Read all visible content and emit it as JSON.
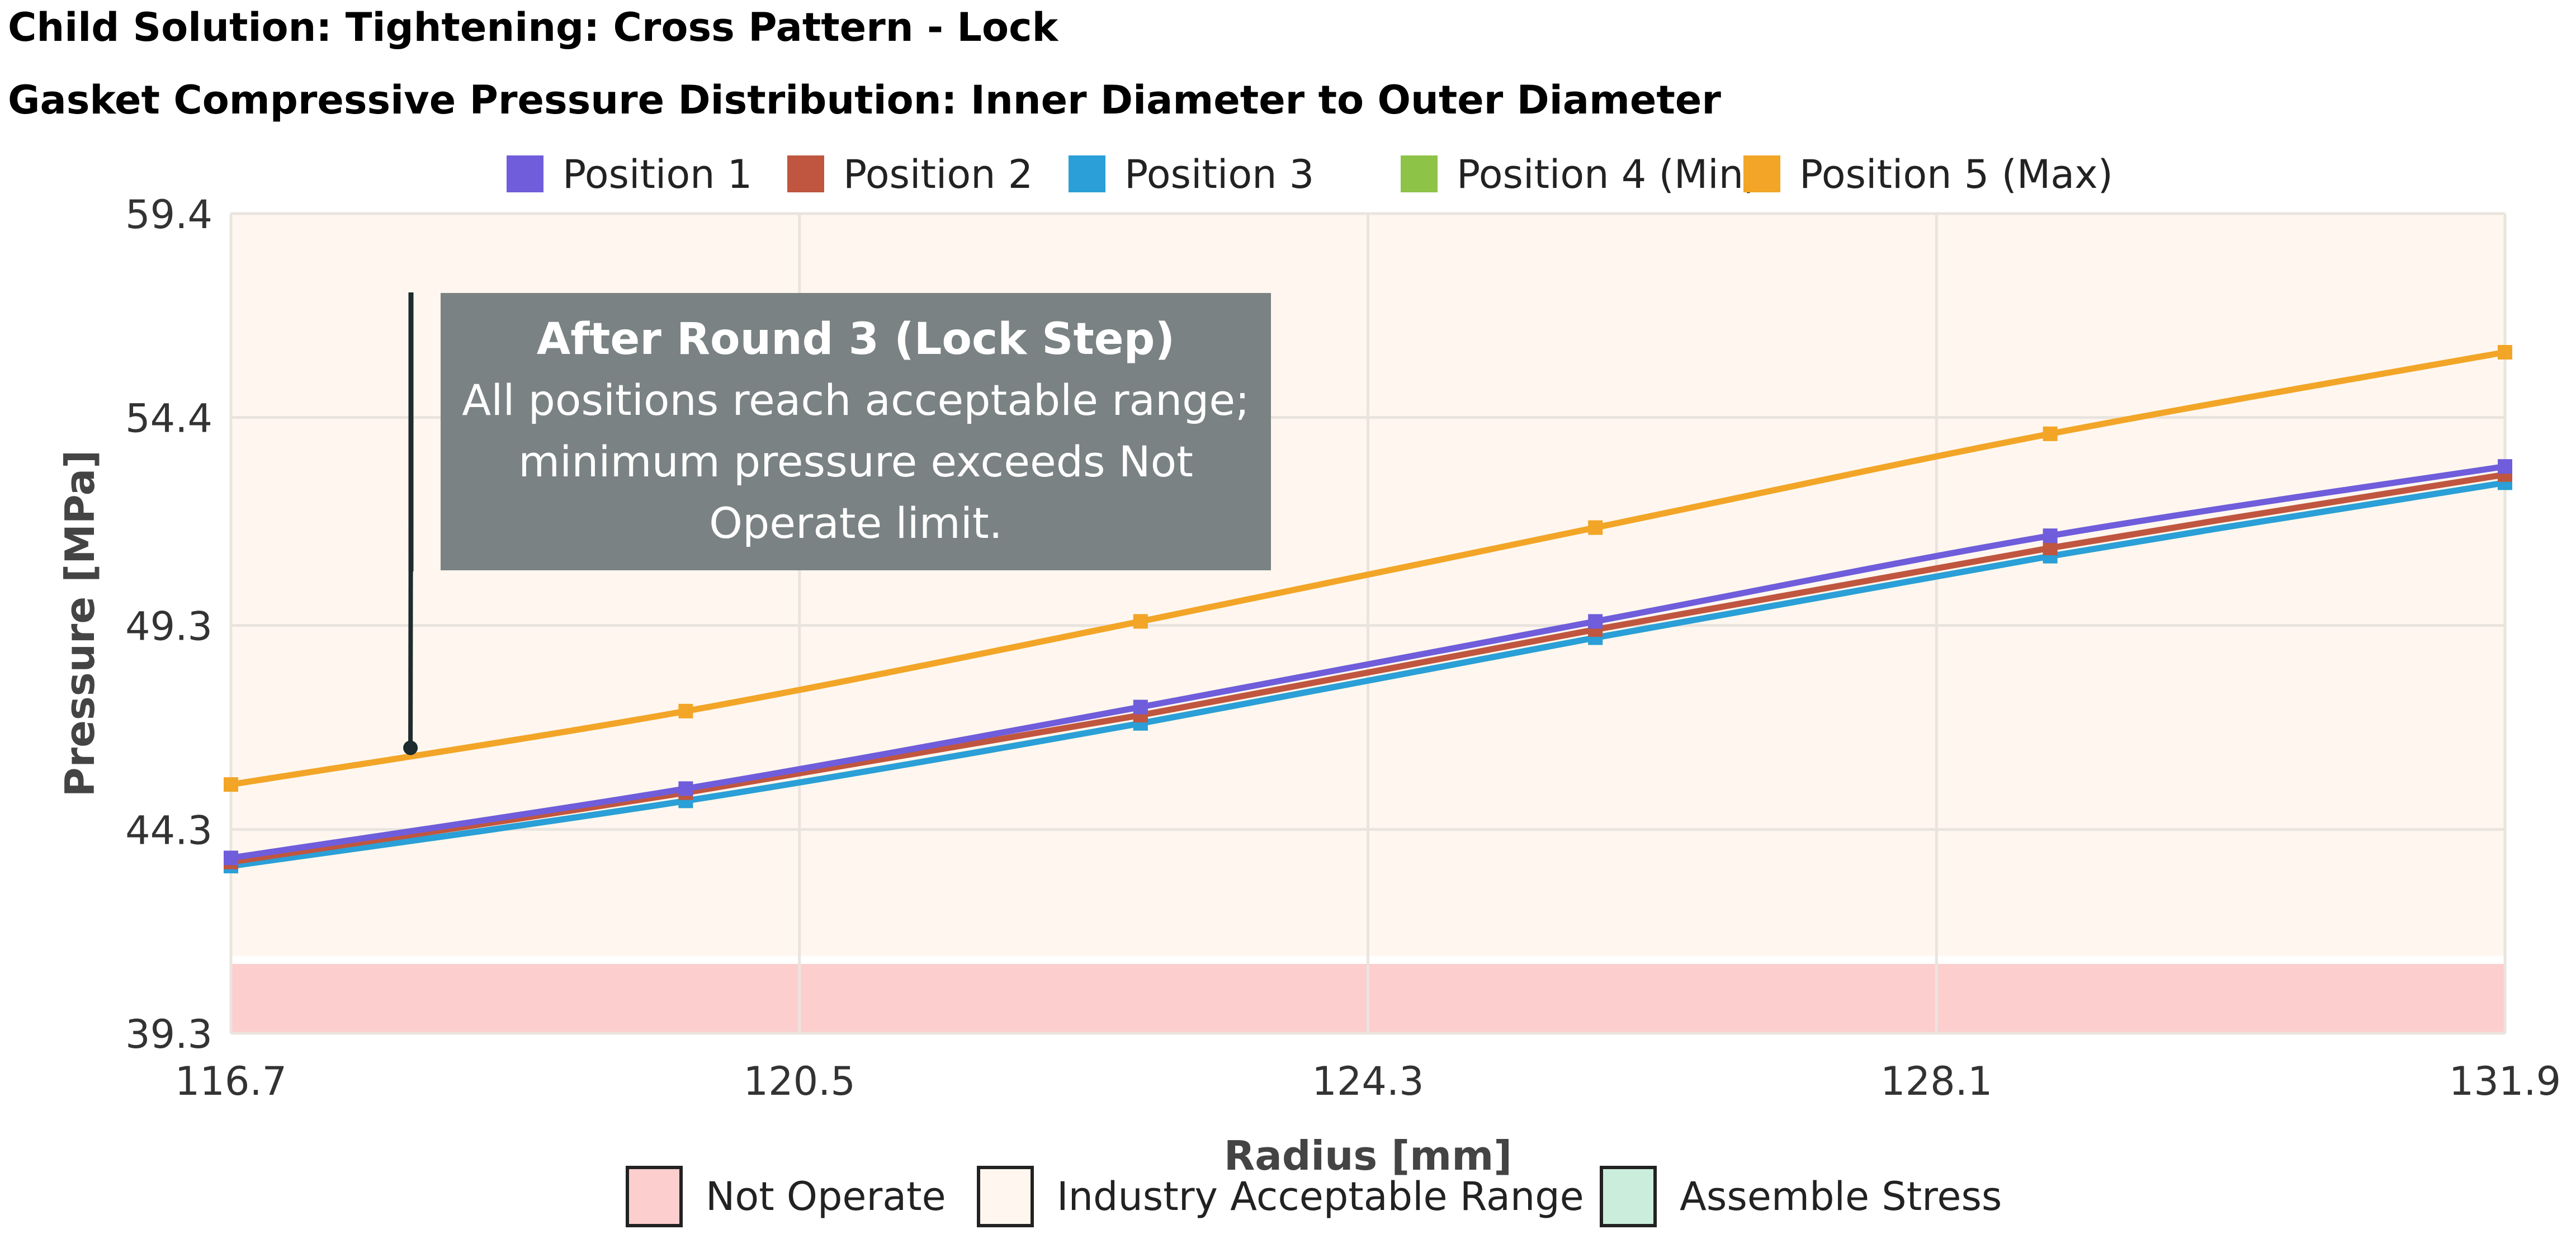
{
  "title": "Child Solution: Tightening: Cross Pattern - Lock",
  "subtitle": "Gasket Compressive Pressure Distribution: Inner Diameter to Outer Diameter",
  "annotation": {
    "heading": "After Round 3 (Lock Step)",
    "body": "All positions reach acceptable range; minimum pressure exceeds Not Operate limit."
  },
  "colors": {
    "position_1": "#6f5ddb",
    "position_2": "#c0563f",
    "position_3": "#2a9fd8",
    "position_4": "#8dc447",
    "position_5": "#f2a527",
    "not_operate": "#fdcece",
    "acceptable": "#fff7ef",
    "assemble": "#cbeedc"
  },
  "chart_data": {
    "type": "line",
    "xlabel": "Radius [mm]",
    "ylabel": "Pressure [MPa]",
    "xlim": [
      116.7,
      131.9
    ],
    "ylim": [
      39.3,
      59.4
    ],
    "x_ticks": [
      "116.7",
      "120.5",
      "124.3",
      "128.1",
      "131.9"
    ],
    "y_ticks": [
      "39.3",
      "44.3",
      "49.3",
      "54.4",
      "59.4"
    ],
    "grid": true,
    "legend_position": "top",
    "x": [
      116.7,
      119.74,
      122.78,
      125.82,
      128.86,
      131.9
    ],
    "series": [
      {
        "name": "Position 1",
        "color_key": "position_1",
        "values": [
          43.6,
          45.3,
          47.3,
          49.4,
          51.5,
          53.2
        ]
      },
      {
        "name": "Position 2",
        "color_key": "position_2",
        "values": [
          43.5,
          45.2,
          47.1,
          49.2,
          51.2,
          53.0
        ]
      },
      {
        "name": "Position 3",
        "color_key": "position_3",
        "values": [
          43.4,
          45.0,
          46.9,
          49.0,
          51.0,
          52.8
        ]
      },
      {
        "name": "Position 4 (Min)",
        "color_key": "position_4",
        "values": [
          43.4,
          45.0,
          46.9,
          49.0,
          51.0,
          52.8
        ]
      },
      {
        "name": "Position 5 (Max)",
        "color_key": "position_5",
        "values": [
          45.4,
          47.2,
          49.4,
          51.7,
          54.0,
          56.0
        ]
      }
    ],
    "bands": [
      {
        "name": "Not Operate",
        "color_key": "not_operate",
        "from": 39.3,
        "to": 41.0
      },
      {
        "name": "Industry Acceptable Range",
        "color_key": "acceptable",
        "from": 41.2,
        "to": 59.4
      },
      {
        "name": "Assemble Stress",
        "color_key": "assemble",
        "from": null,
        "to": null
      }
    ],
    "annotation_point": {
      "x": 117.9,
      "y": 46.3
    }
  }
}
